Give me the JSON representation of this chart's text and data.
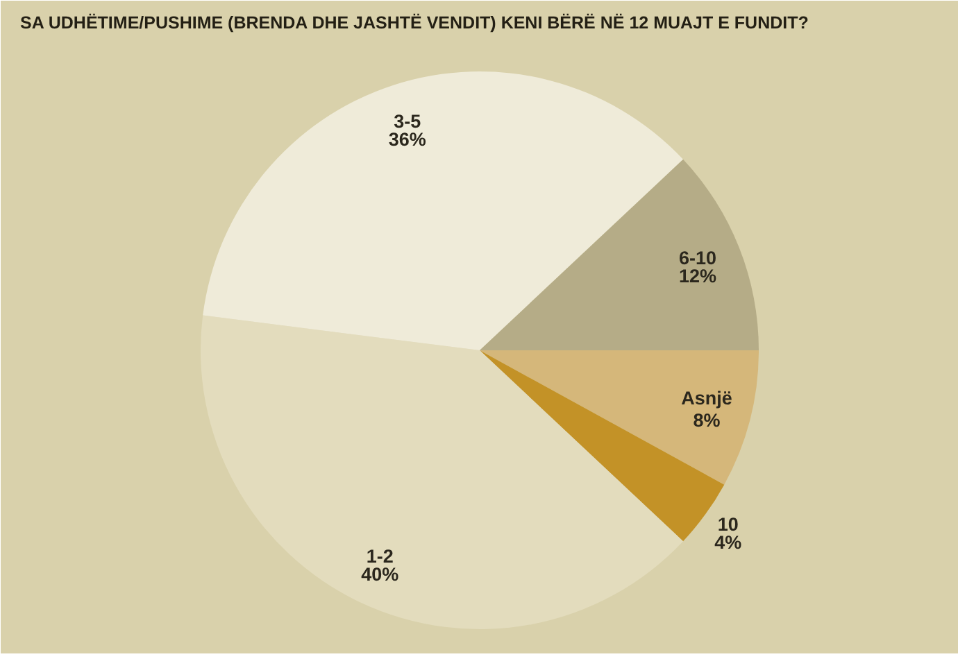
{
  "chart_data": {
    "type": "pie",
    "title": "SA UDHËTIME/PUSHIME (BRENDA DHE JASHTË VENDIT) KENI BËRË NË 12 MUAJT E FUNDIT?",
    "categories": [
      "Asnjë",
      "10",
      "1-2",
      "3-5",
      "6-10"
    ],
    "values": [
      8,
      4,
      40,
      36,
      12
    ],
    "value_labels": [
      "8%",
      "4%",
      "40%",
      "36%",
      "12%"
    ],
    "colors": [
      "#d5b77a",
      "#c39227",
      "#e3dcbd",
      "#efebd9",
      "#b5ac87"
    ]
  }
}
